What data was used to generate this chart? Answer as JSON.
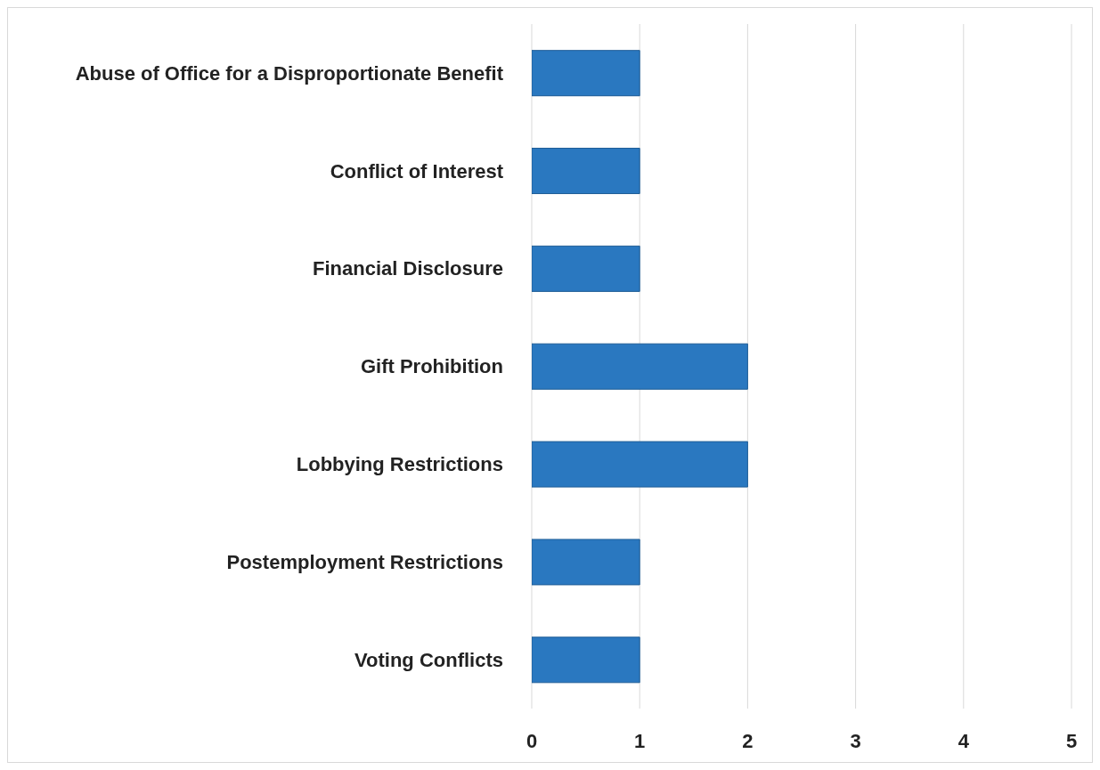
{
  "chart_data": {
    "type": "bar",
    "orientation": "horizontal",
    "categories": [
      "Abuse of Office for a Disproportionate Benefit",
      "Conflict of Interest",
      "Financial Disclosure",
      "Gift Prohibition",
      "Lobbying Restrictions",
      "Postemployment Restrictions",
      "Voting Conflicts"
    ],
    "values": [
      1,
      1,
      1,
      2,
      2,
      1,
      1
    ],
    "color": "#2a78c0",
    "xlim": [
      0,
      5
    ],
    "xticks": [
      0,
      1,
      2,
      3,
      4,
      5
    ],
    "grid": "x"
  }
}
